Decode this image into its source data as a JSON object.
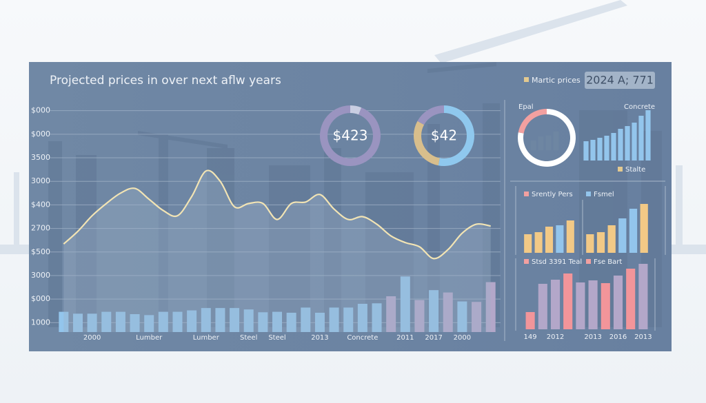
{
  "panel": {
    "legend": "Martic prices",
    "legend_color": "#e3c98f",
    "badge": "2024 A; 771"
  },
  "chart_data": [
    {
      "type": "bar",
      "title": "Projected prices in over next aflw years",
      "ylim": [
        800,
        5700
      ],
      "yticks": [
        1000,
        {
          "value": 1500,
          "label": "$000"
        },
        {
          "value": 2000,
          "label": "3000"
        },
        {
          "value": 2500,
          "label": "$500"
        },
        {
          "value": 3000,
          "label": "2700"
        },
        {
          "value": 3500,
          "label": "$400"
        },
        {
          "value": 4000,
          "label": "3000"
        },
        {
          "value": 4500,
          "label": "3500"
        },
        {
          "value": 5000,
          "label": "$000"
        },
        {
          "value": 5500,
          "label": "$000"
        }
      ],
      "grid": true,
      "categories": [
        null,
        null,
        "2000",
        null,
        null,
        null,
        "Lumber",
        null,
        null,
        null,
        "Lumber",
        null,
        null,
        "Steel",
        null,
        "Steel",
        null,
        null,
        "2013",
        null,
        null,
        "Concrete",
        null,
        null,
        "2011",
        null,
        "2017",
        null,
        "2000",
        null,
        null
      ],
      "series": [
        {
          "type": "bar",
          "colors": [
            "#93c5ec",
            "#93c5ec",
            "#93c5ec",
            "#93c5ec",
            "#93c5ec",
            "#93c5ec",
            "#93c5ec",
            "#93c5ec",
            "#93c5ec",
            "#93c5ec",
            "#93c5ec",
            "#93c5ec",
            "#93c5ec",
            "#93c5ec",
            "#93c5ec",
            "#93c5ec",
            "#93c5ec",
            "#93c5ec",
            "#93c5ec",
            "#93c5ec",
            "#93c5ec",
            "#93c5ec",
            "#93c5ec",
            "#b3a7c9",
            "#93c5ec",
            "#b3a7c9",
            "#93c5ec",
            "#b3a7c9",
            "#93c5ec",
            "#b3a7c9",
            "#b3a7c9"
          ],
          "values": [
            1230,
            1190,
            1190,
            1230,
            1230,
            1180,
            1160,
            1230,
            1230,
            1260,
            1310,
            1310,
            1310,
            1280,
            1220,
            1230,
            1210,
            1320,
            1210,
            1320,
            1320,
            1400,
            1410,
            1560,
            1980,
            1480,
            1690,
            1640,
            1450,
            1440,
            1860
          ]
        },
        {
          "type": "line",
          "color": "#f2e4b4",
          "values": [
            2670,
            2940,
            3270,
            3530,
            3750,
            3850,
            3620,
            3380,
            3270,
            3680,
            4220,
            4000,
            3460,
            3530,
            3530,
            3190,
            3530,
            3560,
            3720,
            3410,
            3190,
            3250,
            3090,
            2840,
            2700,
            2610,
            2360,
            2550,
            2900,
            3090,
            3050
          ]
        }
      ]
    },
    {
      "type": "pie",
      "label": "$423",
      "values": [
        6,
        94
      ],
      "colors": [
        "#c9cee2",
        "#9a94c0"
      ]
    },
    {
      "type": "pie",
      "label": "$42",
      "values": [
        53,
        30,
        17
      ],
      "colors": [
        "#8fc8ee",
        "#d8be8c",
        "#9a94c0"
      ]
    },
    {
      "type": "pie",
      "title": "Epal",
      "values": [
        78,
        22
      ],
      "colors": [
        "#ffffff",
        "#f2a0a0"
      ]
    },
    {
      "type": "bar",
      "ylim": [
        0,
        100
      ],
      "values": [
        40,
        55,
        60,
        75
      ],
      "color": "#6e86a2"
    },
    {
      "type": "bar",
      "title": "Concrete",
      "legend": [
        {
          "name": "Stalte",
          "color": "#e3c98f"
        }
      ],
      "ylim": [
        0,
        80
      ],
      "values": [
        28,
        30,
        33,
        36,
        40,
        46,
        50,
        55,
        65,
        73
      ],
      "color": "#93c5ec"
    },
    {
      "type": "bar",
      "legend": [
        {
          "name": "Srently Pers",
          "color": "#f2a0a0"
        },
        {
          "name": "Fsmel",
          "color": "#93c5ec"
        }
      ],
      "ylim": [
        0,
        80
      ],
      "groups": [
        {
          "values": [
            27,
            30,
            38,
            40,
            47
          ],
          "colors": [
            "#f2c986",
            "#f2c986",
            "#f2c986",
            "#93c5ec",
            "#f2c986"
          ]
        },
        {
          "values": [
            27,
            30,
            40,
            50,
            64,
            71
          ],
          "colors": [
            "#f2c986",
            "#f2c986",
            "#f2c986",
            "#93c5ec",
            "#93c5ec",
            "#f2c986"
          ]
        }
      ]
    },
    {
      "type": "bar",
      "legend": [
        {
          "name": "Stsd 3391 Teal",
          "color": "#f2a0a0"
        },
        {
          "name": "Fse Bart",
          "color": "#f2a0a0"
        }
      ],
      "ylim": [
        0,
        100
      ],
      "categories": [
        "149",
        null,
        "2012",
        null,
        null,
        "2013",
        null,
        "2016",
        null,
        "2013"
      ],
      "values": [
        25,
        66,
        72,
        81,
        68,
        71,
        67,
        78,
        88,
        95
      ],
      "colors": [
        "#f2959a",
        "#b3a7c9",
        "#b3a7c9",
        "#f2959a",
        "#b3a7c9",
        "#b3a7c9",
        "#f2959a",
        "#b3a7c9",
        "#f2959a",
        "#b3a7c9"
      ]
    }
  ]
}
